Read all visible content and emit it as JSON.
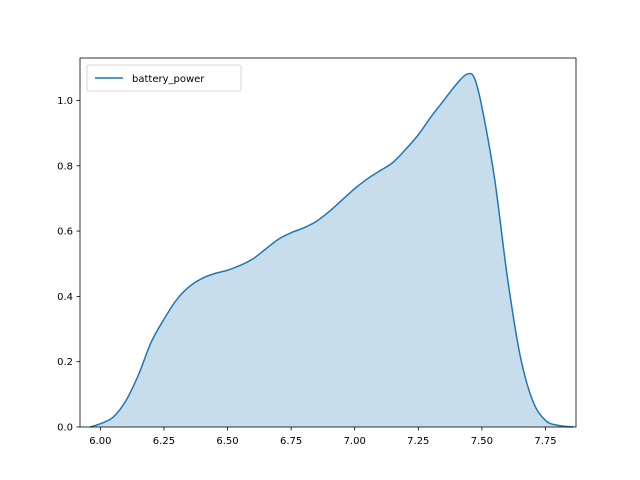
{
  "chart_data": {
    "type": "area",
    "title": "",
    "xlabel": "",
    "ylabel": "",
    "xlim": [
      5.92,
      7.87
    ],
    "ylim": [
      0,
      1.13
    ],
    "xticks": [
      6.0,
      6.25,
      6.5,
      6.75,
      7.0,
      7.25,
      7.5,
      7.75
    ],
    "xtick_labels": [
      "6.00",
      "6.25",
      "6.50",
      "6.75",
      "7.00",
      "7.25",
      "7.50",
      "7.75"
    ],
    "yticks": [
      0.0,
      0.2,
      0.4,
      0.6,
      0.8,
      1.0
    ],
    "ytick_labels": [
      "0.0",
      "0.2",
      "0.4",
      "0.6",
      "0.8",
      "1.0"
    ],
    "grid": false,
    "legend": {
      "position": "upper left",
      "entries": [
        "battery_power"
      ]
    },
    "series": [
      {
        "name": "battery_power",
        "color": "#1f77b4",
        "fill_color": "#1f77b4",
        "fill_opacity": 0.25,
        "x": [
          5.96,
          6.0,
          6.05,
          6.1,
          6.15,
          6.2,
          6.25,
          6.3,
          6.35,
          6.4,
          6.45,
          6.5,
          6.55,
          6.6,
          6.65,
          6.7,
          6.75,
          6.8,
          6.85,
          6.9,
          6.95,
          7.0,
          7.05,
          7.1,
          7.15,
          7.2,
          7.25,
          7.3,
          7.35,
          7.4,
          7.44,
          7.47,
          7.5,
          7.55,
          7.6,
          7.65,
          7.7,
          7.75,
          7.8,
          7.86
        ],
        "y": [
          0.0,
          0.01,
          0.03,
          0.08,
          0.16,
          0.26,
          0.33,
          0.39,
          0.43,
          0.455,
          0.47,
          0.48,
          0.495,
          0.515,
          0.545,
          0.575,
          0.595,
          0.61,
          0.63,
          0.66,
          0.695,
          0.73,
          0.76,
          0.785,
          0.81,
          0.85,
          0.895,
          0.95,
          1.0,
          1.05,
          1.08,
          1.07,
          0.98,
          0.76,
          0.46,
          0.22,
          0.08,
          0.02,
          0.005,
          0.0
        ]
      }
    ]
  }
}
